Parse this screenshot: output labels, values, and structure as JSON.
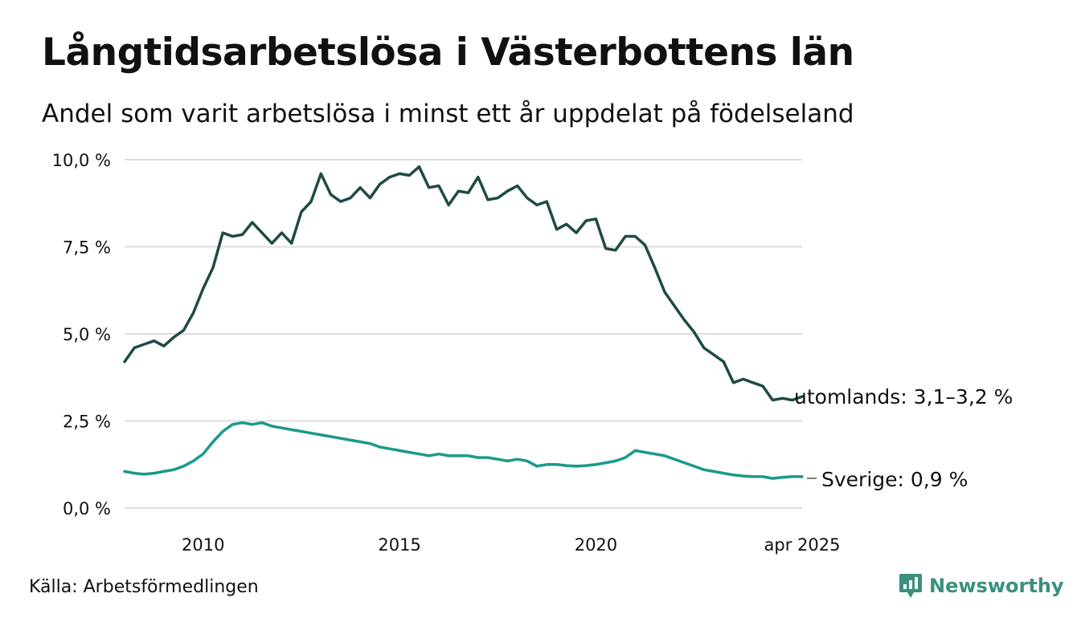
{
  "title": "Långtidsarbetslösa i Västerbottens län",
  "subtitle": "Andel som varit arbetslösa i minst ett år uppdelat på födelseland",
  "source": "Källa: Arbetsförmedlingen",
  "brand": "Newsworthy",
  "colors": {
    "utomlands": "#1f4a45",
    "sverige": "#1a9a8a",
    "grid": "#dddddd",
    "brand": "#3a8f7e"
  },
  "chart_data": {
    "type": "line",
    "title": "Långtidsarbetslösa i Västerbottens län",
    "subtitle": "Andel som varit arbetslösa i minst ett år uppdelat på födelseland",
    "xlabel": "",
    "ylabel": "",
    "x_range": [
      "2008-01",
      "2025-04"
    ],
    "ylim": [
      0,
      10
    ],
    "y_ticks": [
      {
        "value": 0,
        "label": "0,0 %"
      },
      {
        "value": 2.5,
        "label": "2,5 %"
      },
      {
        "value": 5,
        "label": "5,0 %"
      },
      {
        "value": 7.5,
        "label": "7,5 %"
      },
      {
        "value": 10,
        "label": "10,0 %"
      }
    ],
    "x_ticks": [
      {
        "value": "2010-01",
        "label": "2010"
      },
      {
        "value": "2015-01",
        "label": "2015"
      },
      {
        "value": "2020-01",
        "label": "2020"
      },
      {
        "value": "2025-04",
        "label": "apr 2025"
      }
    ],
    "grid": true,
    "legend": "none",
    "series": [
      {
        "key": "utomlands",
        "end_label": "utomlands: 3,1–3,2 %",
        "points": [
          [
            "2008-01",
            4.2
          ],
          [
            "2008-04",
            4.6
          ],
          [
            "2008-07",
            4.7
          ],
          [
            "2008-10",
            4.8
          ],
          [
            "2009-01",
            4.65
          ],
          [
            "2009-04",
            4.9
          ],
          [
            "2009-07",
            5.1
          ],
          [
            "2009-10",
            5.6
          ],
          [
            "2010-01",
            6.3
          ],
          [
            "2010-04",
            6.9
          ],
          [
            "2010-07",
            7.9
          ],
          [
            "2010-10",
            7.8
          ],
          [
            "2011-01",
            7.85
          ],
          [
            "2011-04",
            8.2
          ],
          [
            "2011-07",
            7.9
          ],
          [
            "2011-10",
            7.6
          ],
          [
            "2012-01",
            7.9
          ],
          [
            "2012-04",
            7.6
          ],
          [
            "2012-07",
            8.5
          ],
          [
            "2012-10",
            8.8
          ],
          [
            "2013-01",
            9.6
          ],
          [
            "2013-04",
            9.0
          ],
          [
            "2013-07",
            8.8
          ],
          [
            "2013-10",
            8.9
          ],
          [
            "2014-01",
            9.2
          ],
          [
            "2014-04",
            8.9
          ],
          [
            "2014-07",
            9.3
          ],
          [
            "2014-10",
            9.5
          ],
          [
            "2015-01",
            9.6
          ],
          [
            "2015-04",
            9.55
          ],
          [
            "2015-07",
            9.8
          ],
          [
            "2015-10",
            9.2
          ],
          [
            "2016-01",
            9.25
          ],
          [
            "2016-04",
            8.7
          ],
          [
            "2016-07",
            9.1
          ],
          [
            "2016-10",
            9.05
          ],
          [
            "2017-01",
            9.5
          ],
          [
            "2017-04",
            8.85
          ],
          [
            "2017-07",
            8.9
          ],
          [
            "2017-10",
            9.1
          ],
          [
            "2018-01",
            9.25
          ],
          [
            "2018-04",
            8.9
          ],
          [
            "2018-07",
            8.7
          ],
          [
            "2018-10",
            8.8
          ],
          [
            "2019-01",
            8.0
          ],
          [
            "2019-04",
            8.15
          ],
          [
            "2019-07",
            7.9
          ],
          [
            "2019-10",
            8.25
          ],
          [
            "2020-01",
            8.3
          ],
          [
            "2020-04",
            7.45
          ],
          [
            "2020-07",
            7.4
          ],
          [
            "2020-10",
            7.8
          ],
          [
            "2021-01",
            7.8
          ],
          [
            "2021-04",
            7.55
          ],
          [
            "2021-07",
            6.9
          ],
          [
            "2021-10",
            6.2
          ],
          [
            "2022-01",
            5.8
          ],
          [
            "2022-04",
            5.4
          ],
          [
            "2022-07",
            5.05
          ],
          [
            "2022-10",
            4.6
          ],
          [
            "2023-01",
            4.4
          ],
          [
            "2023-04",
            4.2
          ],
          [
            "2023-07",
            3.6
          ],
          [
            "2023-10",
            3.7
          ],
          [
            "2024-01",
            3.6
          ],
          [
            "2024-04",
            3.5
          ],
          [
            "2024-07",
            3.1
          ],
          [
            "2024-10",
            3.15
          ],
          [
            "2025-01",
            3.1
          ],
          [
            "2025-04",
            3.2
          ]
        ]
      },
      {
        "key": "sverige",
        "end_label": "Sverige: 0,9 %",
        "points": [
          [
            "2008-01",
            1.05
          ],
          [
            "2008-04",
            1.0
          ],
          [
            "2008-07",
            0.97
          ],
          [
            "2008-10",
            1.0
          ],
          [
            "2009-01",
            1.05
          ],
          [
            "2009-04",
            1.1
          ],
          [
            "2009-07",
            1.2
          ],
          [
            "2009-10",
            1.35
          ],
          [
            "2010-01",
            1.55
          ],
          [
            "2010-04",
            1.9
          ],
          [
            "2010-07",
            2.2
          ],
          [
            "2010-10",
            2.4
          ],
          [
            "2011-01",
            2.45
          ],
          [
            "2011-04",
            2.4
          ],
          [
            "2011-07",
            2.45
          ],
          [
            "2011-10",
            2.35
          ],
          [
            "2012-01",
            2.3
          ],
          [
            "2012-04",
            2.25
          ],
          [
            "2012-07",
            2.2
          ],
          [
            "2012-10",
            2.15
          ],
          [
            "2013-01",
            2.1
          ],
          [
            "2013-04",
            2.05
          ],
          [
            "2013-07",
            2.0
          ],
          [
            "2013-10",
            1.95
          ],
          [
            "2014-01",
            1.9
          ],
          [
            "2014-04",
            1.85
          ],
          [
            "2014-07",
            1.75
          ],
          [
            "2014-10",
            1.7
          ],
          [
            "2015-01",
            1.65
          ],
          [
            "2015-04",
            1.6
          ],
          [
            "2015-07",
            1.55
          ],
          [
            "2015-10",
            1.5
          ],
          [
            "2016-01",
            1.55
          ],
          [
            "2016-04",
            1.5
          ],
          [
            "2016-07",
            1.5
          ],
          [
            "2016-10",
            1.5
          ],
          [
            "2017-01",
            1.45
          ],
          [
            "2017-04",
            1.45
          ],
          [
            "2017-07",
            1.4
          ],
          [
            "2017-10",
            1.35
          ],
          [
            "2018-01",
            1.4
          ],
          [
            "2018-04",
            1.35
          ],
          [
            "2018-07",
            1.2
          ],
          [
            "2018-10",
            1.25
          ],
          [
            "2019-01",
            1.25
          ],
          [
            "2019-04",
            1.22
          ],
          [
            "2019-07",
            1.2
          ],
          [
            "2019-10",
            1.22
          ],
          [
            "2020-01",
            1.25
          ],
          [
            "2020-04",
            1.3
          ],
          [
            "2020-07",
            1.35
          ],
          [
            "2020-10",
            1.45
          ],
          [
            "2021-01",
            1.65
          ],
          [
            "2021-04",
            1.6
          ],
          [
            "2021-07",
            1.55
          ],
          [
            "2021-10",
            1.5
          ],
          [
            "2022-01",
            1.4
          ],
          [
            "2022-04",
            1.3
          ],
          [
            "2022-07",
            1.2
          ],
          [
            "2022-10",
            1.1
          ],
          [
            "2023-01",
            1.05
          ],
          [
            "2023-04",
            1.0
          ],
          [
            "2023-07",
            0.95
          ],
          [
            "2023-10",
            0.92
          ],
          [
            "2024-01",
            0.9
          ],
          [
            "2024-04",
            0.9
          ],
          [
            "2024-07",
            0.85
          ],
          [
            "2024-10",
            0.88
          ],
          [
            "2025-01",
            0.9
          ],
          [
            "2025-04",
            0.9
          ]
        ]
      }
    ]
  }
}
